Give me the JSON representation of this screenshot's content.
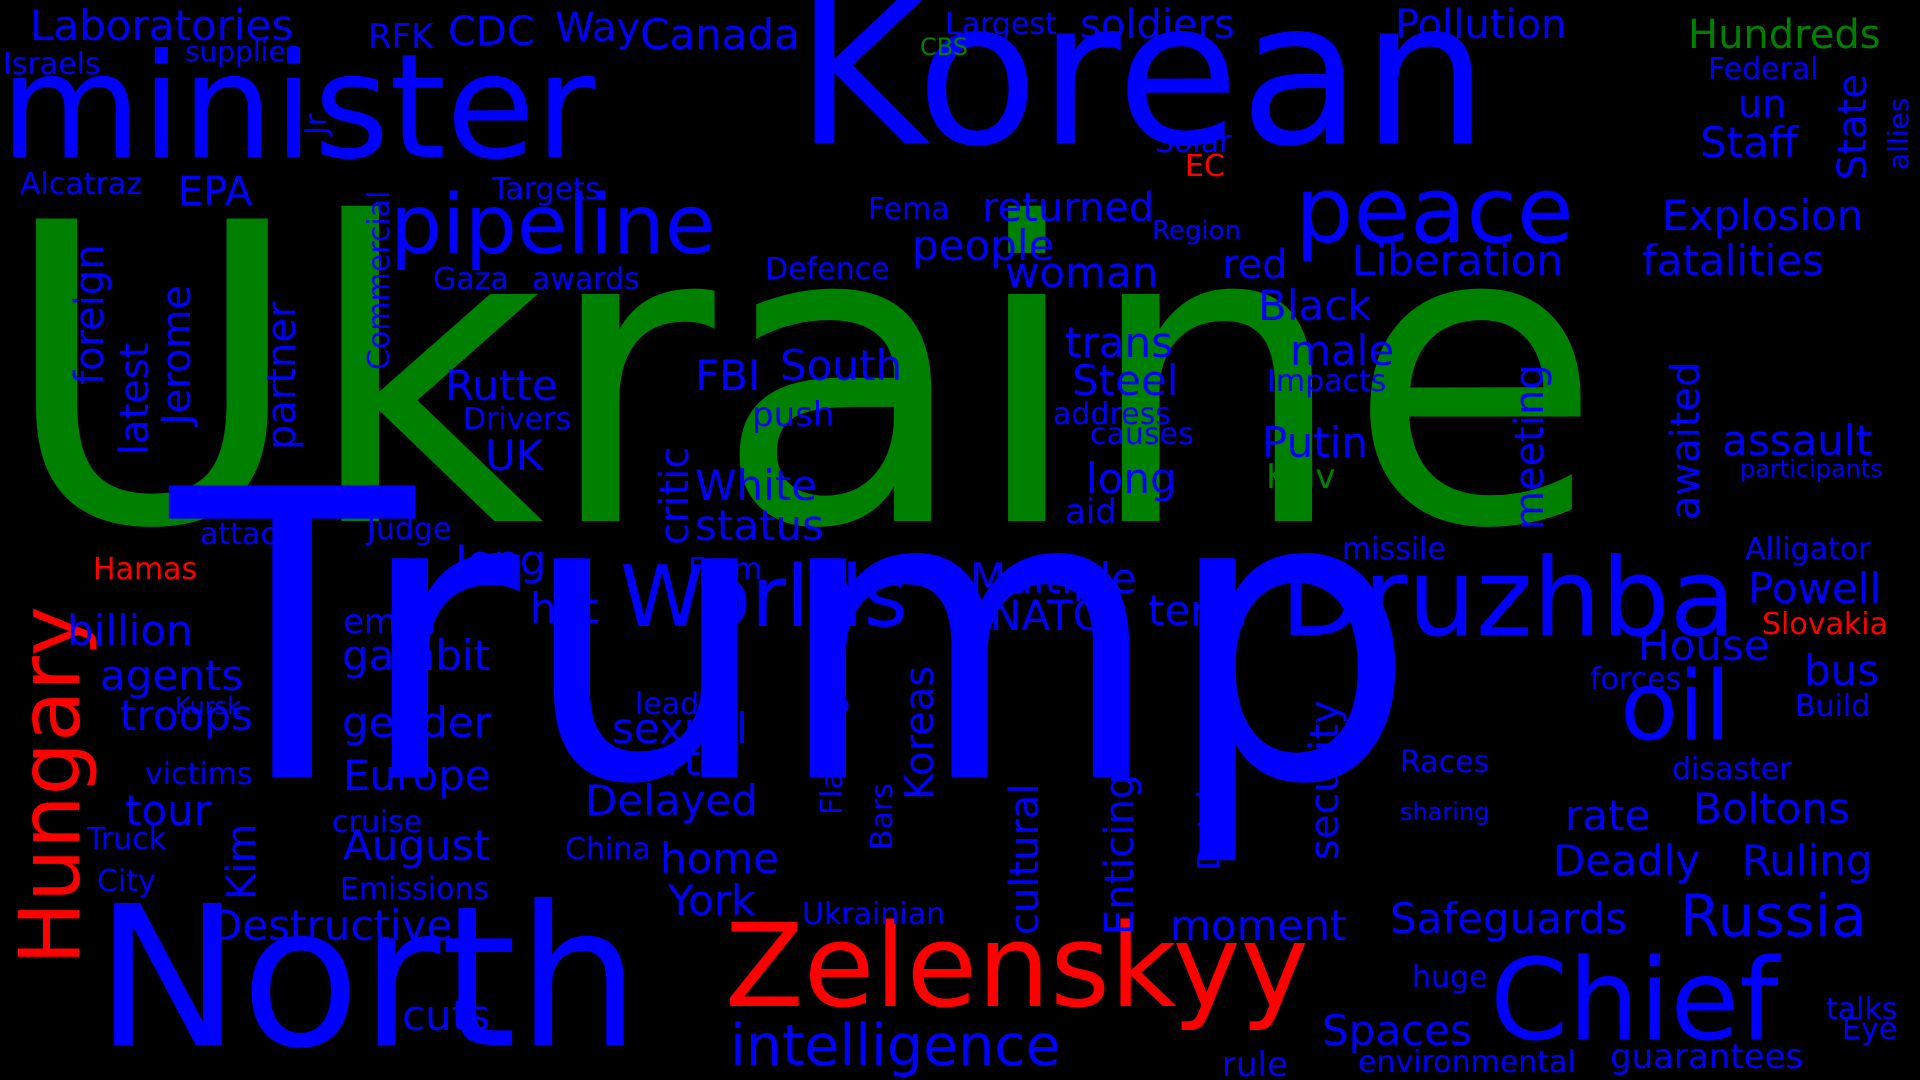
{
  "colors": {
    "blue": "#0000ff",
    "green": "#008000",
    "red": "#ff0000",
    "background": "#000000"
  },
  "words": [
    {
      "text": "Ukraine",
      "color": "green"
    },
    {
      "text": "Trump",
      "color": "blue"
    },
    {
      "text": "Korean",
      "color": "blue"
    },
    {
      "text": "minister",
      "color": "blue"
    },
    {
      "text": "North",
      "color": "blue"
    },
    {
      "text": "Zelenskyy",
      "color": "red"
    },
    {
      "text": "Chief",
      "color": "blue"
    },
    {
      "text": "Druzhba",
      "color": "blue"
    },
    {
      "text": "pipeline",
      "color": "blue"
    },
    {
      "text": "peace",
      "color": "blue"
    },
    {
      "text": "Hungary",
      "color": "red"
    },
    {
      "text": "oil",
      "color": "blue"
    },
    {
      "text": "Worlds",
      "color": "blue"
    },
    {
      "text": "intelligence",
      "color": "blue"
    },
    {
      "text": "Laboratories",
      "color": "blue"
    },
    {
      "text": "Pollution",
      "color": "blue"
    },
    {
      "text": "Hundreds",
      "color": "green"
    },
    {
      "text": "soldiers",
      "color": "blue"
    },
    {
      "text": "Canada",
      "color": "blue"
    },
    {
      "text": "CDC",
      "color": "blue"
    },
    {
      "text": "Way",
      "color": "blue"
    },
    {
      "text": "RFK",
      "color": "blue"
    },
    {
      "text": "Largest",
      "color": "blue"
    },
    {
      "text": "CBS",
      "color": "green"
    },
    {
      "text": "supplies",
      "color": "blue"
    },
    {
      "text": "Israels",
      "color": "blue"
    },
    {
      "text": "Federal",
      "color": "blue"
    },
    {
      "text": "un",
      "color": "blue"
    },
    {
      "text": "Staff",
      "color": "blue"
    },
    {
      "text": "State",
      "color": "blue"
    },
    {
      "text": "allies",
      "color": "blue"
    },
    {
      "text": "Solar",
      "color": "blue"
    },
    {
      "text": "EC",
      "color": "red"
    },
    {
      "text": "Alcatraz",
      "color": "blue"
    },
    {
      "text": "EPA",
      "color": "blue"
    },
    {
      "text": "Targets",
      "color": "blue"
    },
    {
      "text": "Jr",
      "color": "blue"
    },
    {
      "text": "Commercial",
      "color": "blue"
    },
    {
      "text": "foreign",
      "color": "blue"
    },
    {
      "text": "latest",
      "color": "blue"
    },
    {
      "text": "Jerome",
      "color": "blue"
    },
    {
      "text": "partner",
      "color": "blue"
    },
    {
      "text": "Gaza",
      "color": "blue"
    },
    {
      "text": "awards",
      "color": "blue"
    },
    {
      "text": "Fema",
      "color": "blue"
    },
    {
      "text": "returned",
      "color": "blue"
    },
    {
      "text": "Region",
      "color": "blue"
    },
    {
      "text": "Explosion",
      "color": "blue"
    },
    {
      "text": "people",
      "color": "blue"
    },
    {
      "text": "Defence",
      "color": "blue"
    },
    {
      "text": "woman",
      "color": "blue"
    },
    {
      "text": "red",
      "color": "blue"
    },
    {
      "text": "Liberation",
      "color": "blue"
    },
    {
      "text": "fatalities",
      "color": "blue"
    },
    {
      "text": "Black",
      "color": "blue"
    },
    {
      "text": "trans",
      "color": "blue"
    },
    {
      "text": "male",
      "color": "blue"
    },
    {
      "text": "awaited",
      "color": "blue"
    },
    {
      "text": "South",
      "color": "blue"
    },
    {
      "text": "FBI",
      "color": "blue"
    },
    {
      "text": "Rutte",
      "color": "blue"
    },
    {
      "text": "Steel",
      "color": "blue"
    },
    {
      "text": "Impacts",
      "color": "blue"
    },
    {
      "text": "meeting",
      "color": "blue"
    },
    {
      "text": "Drivers",
      "color": "blue"
    },
    {
      "text": "push",
      "color": "blue"
    },
    {
      "text": "critic",
      "color": "blue"
    },
    {
      "text": "address",
      "color": "blue"
    },
    {
      "text": "causes",
      "color": "blue"
    },
    {
      "text": "Putin",
      "color": "blue"
    },
    {
      "text": "assault",
      "color": "blue"
    },
    {
      "text": "UK",
      "color": "blue"
    },
    {
      "text": "White",
      "color": "blue"
    },
    {
      "text": "long",
      "color": "blue"
    },
    {
      "text": "Kyiv",
      "color": "green"
    },
    {
      "text": "participants",
      "color": "blue"
    },
    {
      "text": "status",
      "color": "blue"
    },
    {
      "text": "aid",
      "color": "blue"
    },
    {
      "text": "attack",
      "color": "blue"
    },
    {
      "text": "Judge",
      "color": "blue"
    },
    {
      "text": "Jong",
      "color": "blue"
    },
    {
      "text": "missile",
      "color": "blue"
    },
    {
      "text": "Alligator",
      "color": "blue"
    },
    {
      "text": "Hamas",
      "color": "red"
    },
    {
      "text": "Farm",
      "color": "blue"
    },
    {
      "text": "Multiple",
      "color": "blue"
    },
    {
      "text": "Powell",
      "color": "blue"
    },
    {
      "text": "hot",
      "color": "blue"
    },
    {
      "text": "term",
      "color": "blue"
    },
    {
      "text": "NATO",
      "color": "blue"
    },
    {
      "text": "email",
      "color": "blue"
    },
    {
      "text": "Slovakia",
      "color": "red"
    },
    {
      "text": "billion",
      "color": "blue"
    },
    {
      "text": "House",
      "color": "blue"
    },
    {
      "text": "gambit",
      "color": "blue"
    },
    {
      "text": "agents",
      "color": "blue"
    },
    {
      "text": "security",
      "color": "blue"
    },
    {
      "text": "bus",
      "color": "blue"
    },
    {
      "text": "forces",
      "color": "blue"
    },
    {
      "text": "Kursk",
      "color": "blue"
    },
    {
      "text": "leader",
      "color": "blue"
    },
    {
      "text": "Flamingo",
      "color": "blue"
    },
    {
      "text": "Build",
      "color": "blue"
    },
    {
      "text": "troops",
      "color": "blue"
    },
    {
      "text": "gender",
      "color": "blue"
    },
    {
      "text": "sexual",
      "color": "blue"
    },
    {
      "text": "Koreas",
      "color": "blue"
    },
    {
      "text": "Enticing",
      "color": "blue"
    },
    {
      "text": "Detainees",
      "color": "blue"
    },
    {
      "text": "Court",
      "color": "blue"
    },
    {
      "text": "Races",
      "color": "blue"
    },
    {
      "text": "disaster",
      "color": "blue"
    },
    {
      "text": "victims",
      "color": "blue"
    },
    {
      "text": "Europe",
      "color": "blue"
    },
    {
      "text": "Delayed",
      "color": "blue"
    },
    {
      "text": "cultural",
      "color": "blue"
    },
    {
      "text": "tour",
      "color": "blue"
    },
    {
      "text": "cruise",
      "color": "blue"
    },
    {
      "text": "Bars",
      "color": "blue"
    },
    {
      "text": "sharing",
      "color": "blue"
    },
    {
      "text": "rate",
      "color": "blue"
    },
    {
      "text": "Boltons",
      "color": "blue"
    },
    {
      "text": "Truck",
      "color": "blue"
    },
    {
      "text": "Kim",
      "color": "blue"
    },
    {
      "text": "August",
      "color": "blue"
    },
    {
      "text": "China",
      "color": "blue"
    },
    {
      "text": "home",
      "color": "blue"
    },
    {
      "text": "Deadly",
      "color": "blue"
    },
    {
      "text": "Ruling",
      "color": "blue"
    },
    {
      "text": "City",
      "color": "blue"
    },
    {
      "text": "Emissions",
      "color": "blue"
    },
    {
      "text": "York",
      "color": "blue"
    },
    {
      "text": "Destructive",
      "color": "blue"
    },
    {
      "text": "Ukrainian",
      "color": "blue"
    },
    {
      "text": "moment",
      "color": "blue"
    },
    {
      "text": "Safeguards",
      "color": "blue"
    },
    {
      "text": "Russia",
      "color": "blue"
    },
    {
      "text": "huge",
      "color": "blue"
    },
    {
      "text": "cuts",
      "color": "blue"
    },
    {
      "text": "Spaces",
      "color": "blue"
    },
    {
      "text": "talks",
      "color": "blue"
    },
    {
      "text": "Eye",
      "color": "blue"
    },
    {
      "text": "rule",
      "color": "blue"
    },
    {
      "text": "environmental",
      "color": "blue"
    },
    {
      "text": "guarantees",
      "color": "blue"
    }
  ]
}
